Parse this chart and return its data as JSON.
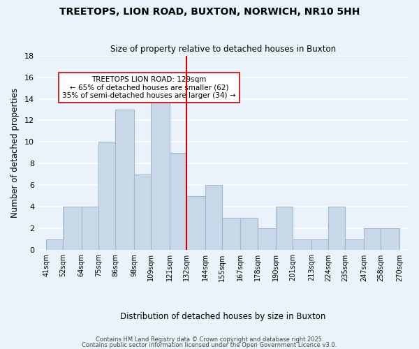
{
  "title": "TREETOPS, LION ROAD, BUXTON, NORWICH, NR10 5HH",
  "subtitle": "Size of property relative to detached houses in Buxton",
  "xlabel": "Distribution of detached houses by size in Buxton",
  "ylabel": "Number of detached properties",
  "bar_color": "#c8d8e8",
  "bar_edgecolor": "#a0b8cc",
  "background_color": "#eaf3fb",
  "grid_color": "#ffffff",
  "bin_edges": [
    41,
    52,
    64,
    75,
    86,
    98,
    109,
    121,
    132,
    144,
    155,
    167,
    178,
    190,
    201,
    213,
    224,
    235,
    247,
    258,
    270
  ],
  "bin_labels": [
    "41sqm",
    "52sqm",
    "64sqm",
    "75sqm",
    "86sqm",
    "98sqm",
    "109sqm",
    "121sqm",
    "132sqm",
    "144sqm",
    "155sqm",
    "167sqm",
    "178sqm",
    "190sqm",
    "201sqm",
    "213sqm",
    "224sqm",
    "235sqm",
    "247sqm",
    "258sqm",
    "270sqm"
  ],
  "counts": [
    1,
    4,
    4,
    10,
    13,
    7,
    14,
    9,
    5,
    6,
    3,
    3,
    2,
    4,
    1,
    1,
    4,
    1,
    2,
    2
  ],
  "property_line_x": 132,
  "property_line_color": "#cc0000",
  "annotation_title": "TREETOPS LION ROAD: 129sqm",
  "annotation_line1": "← 65% of detached houses are smaller (62)",
  "annotation_line2": "35% of semi-detached houses are larger (34) →",
  "ylim": [
    0,
    18
  ],
  "yticks": [
    0,
    2,
    4,
    6,
    8,
    10,
    12,
    14,
    16,
    18
  ],
  "footer1": "Contains HM Land Registry data © Crown copyright and database right 2025.",
  "footer2": "Contains public sector information licensed under the Open Government Licence v3.0."
}
